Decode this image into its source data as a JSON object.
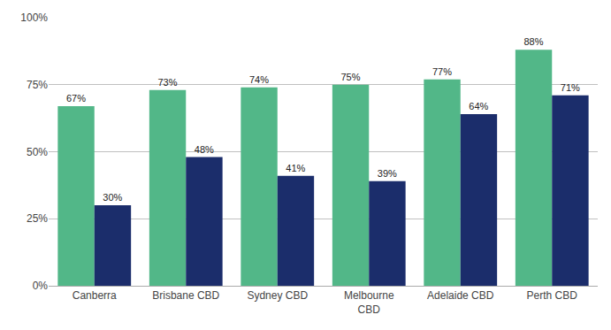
{
  "chart_data": {
    "type": "bar",
    "categories": [
      "Canberra",
      "Brisbane CBD",
      "Sydney CBD",
      "Melbourne\nCBD",
      "Adelaide CBD",
      "Perth CBD"
    ],
    "series": [
      {
        "color": "#52b788",
        "values": [
          67,
          73,
          74,
          75,
          77,
          88
        ],
        "value_labels": [
          "67%",
          "73%",
          "74%",
          "75%",
          "77%",
          "88%"
        ]
      },
      {
        "color": "#1b2d6b",
        "values": [
          30,
          48,
          41,
          39,
          64,
          71
        ],
        "value_labels": [
          "30%",
          "48%",
          "41%",
          "39%",
          "64%",
          "71%"
        ]
      }
    ],
    "ylim": [
      0,
      100
    ],
    "yticks": [
      {
        "value": 0,
        "label": "0%"
      },
      {
        "value": 25,
        "label": "25%"
      },
      {
        "value": 50,
        "label": "50%"
      },
      {
        "value": 75,
        "label": "75%"
      },
      {
        "value": 100,
        "label": "100%"
      }
    ],
    "grid": true,
    "data_labels": true
  }
}
